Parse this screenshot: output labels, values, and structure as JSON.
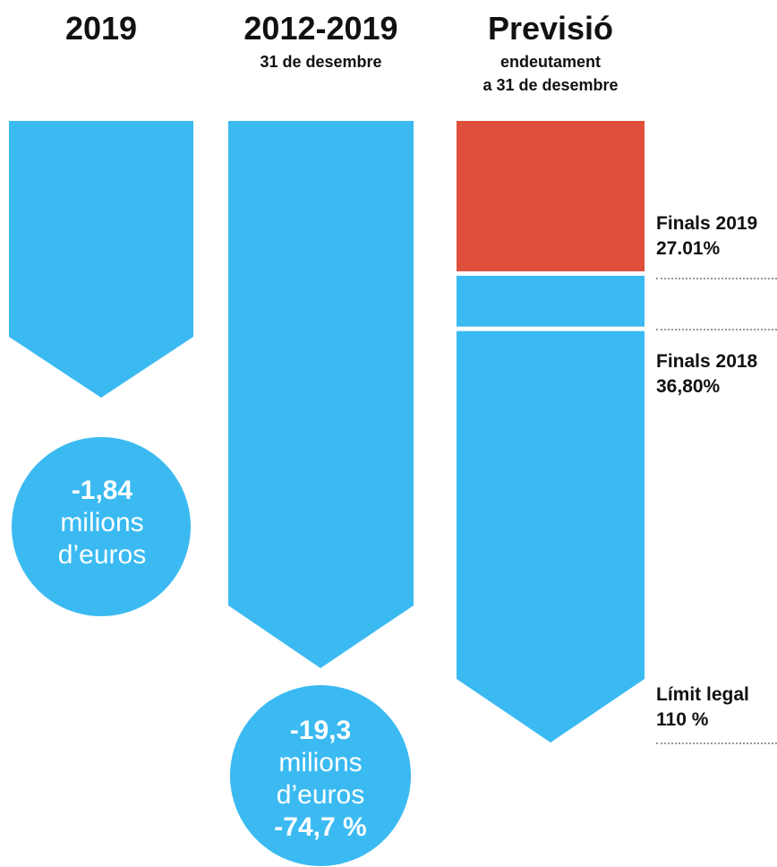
{
  "chart_data": {
    "type": "bar",
    "columns": [
      {
        "title": "2019",
        "subtitle": ""
      },
      {
        "title": "2012-2019",
        "subtitle": "31 de desembre"
      },
      {
        "title": "Previsió",
        "subtitle_line1": "endeutament",
        "subtitle_line2": "a 31 de desembre"
      }
    ],
    "circles": [
      {
        "value": "-1,84",
        "unit_line1": "milions",
        "unit_line2": "d’euros"
      },
      {
        "value": "-19,3",
        "unit_line1": "milions",
        "unit_line2": "d’euros",
        "percent": "-74,7 %"
      }
    ],
    "forecast": {
      "unit": "%",
      "scale_max": 110,
      "segments": [
        {
          "label": "Finals 2019",
          "value": 27.01,
          "value_text": "27.01%",
          "color": "#df4f3b"
        },
        {
          "label": "Finals 2018",
          "value": 36.8,
          "value_text": "36,80%",
          "color": "#3bbaf2"
        },
        {
          "label": "Límit legal",
          "value": 110,
          "value_text": "110 %",
          "color": "#3bbaf2"
        }
      ]
    }
  },
  "colors": {
    "blue": "#3bbaf2",
    "red": "#df4f3b",
    "text": "#111111"
  }
}
